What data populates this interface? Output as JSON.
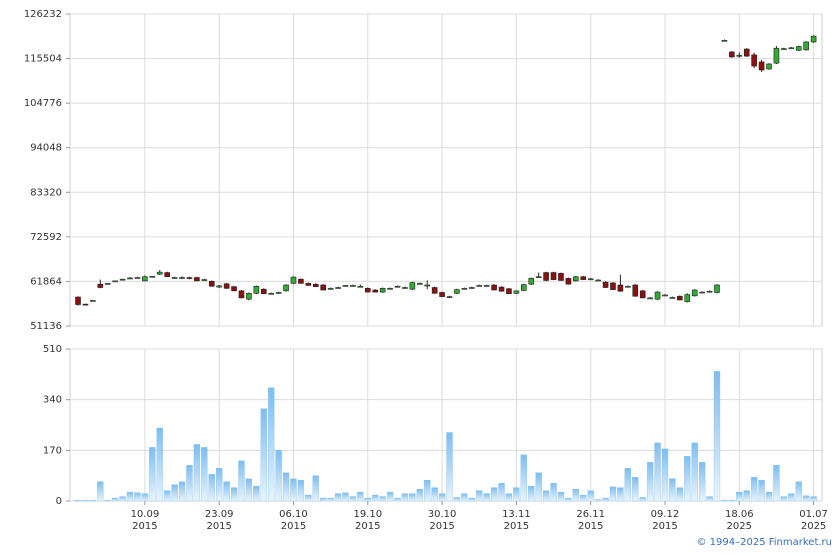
{
  "chart_data": {
    "type": "candlestick",
    "credit": "© 1994–2025 Finmarket.ru",
    "categories": [
      null,
      null,
      null,
      null,
      null,
      null,
      null,
      null,
      null,
      {
        "day": "10.09",
        "year": "2015"
      },
      null,
      null,
      null,
      null,
      null,
      null,
      null,
      null,
      null,
      {
        "day": "23.09",
        "year": "2015"
      },
      null,
      null,
      null,
      null,
      null,
      null,
      null,
      null,
      null,
      {
        "day": "06.10",
        "year": "2015"
      },
      null,
      null,
      null,
      null,
      null,
      null,
      null,
      null,
      null,
      {
        "day": "19.10",
        "year": "2015"
      },
      null,
      null,
      null,
      null,
      null,
      null,
      null,
      null,
      null,
      {
        "day": "30.10",
        "year": "2015"
      },
      null,
      null,
      null,
      null,
      null,
      null,
      null,
      null,
      null,
      {
        "day": "13.11",
        "year": "2015"
      },
      null,
      null,
      null,
      null,
      null,
      null,
      null,
      null,
      null,
      {
        "day": "26.11",
        "year": "2015"
      },
      null,
      null,
      null,
      null,
      null,
      null,
      null,
      null,
      null,
      {
        "day": "09.12",
        "year": "2015"
      },
      null,
      null,
      null,
      null,
      null,
      null,
      null,
      null,
      null,
      {
        "day": "18.06",
        "year": "2025"
      },
      null,
      null,
      null,
      null,
      null,
      null,
      null,
      null,
      null,
      {
        "day": "01.07",
        "year": "2025"
      }
    ],
    "ohlc": [
      [
        58100,
        58300,
        56000,
        56300
      ],
      [
        56400,
        56500,
        56200,
        56300
      ],
      [
        57300,
        57400,
        57200,
        57300
      ],
      [
        61200,
        62300,
        60200,
        60400
      ],
      [
        61400,
        61500,
        61300,
        61400
      ],
      [
        61900,
        62000,
        61800,
        62000
      ],
      [
        62400,
        62500,
        62300,
        62400
      ],
      [
        62700,
        62900,
        62600,
        62700
      ],
      [
        62800,
        63000,
        62600,
        62800
      ],
      [
        62000,
        63300,
        61900,
        63000
      ],
      [
        63000,
        63200,
        62800,
        63100
      ],
      [
        63600,
        64600,
        63400,
        64100
      ],
      [
        64000,
        64200,
        62900,
        63000
      ],
      [
        62800,
        63000,
        62600,
        62800
      ],
      [
        62700,
        63100,
        62500,
        62800
      ],
      [
        62800,
        63000,
        62400,
        62600
      ],
      [
        62800,
        63000,
        61900,
        62000
      ],
      [
        62300,
        62500,
        62100,
        62300
      ],
      [
        61900,
        62100,
        60600,
        60700
      ],
      [
        60500,
        61000,
        60300,
        60800
      ],
      [
        61300,
        61500,
        60100,
        60200
      ],
      [
        60600,
        60800,
        59500,
        59600
      ],
      [
        59600,
        59800,
        57800,
        57900
      ],
      [
        57600,
        59200,
        57300,
        59000
      ],
      [
        59000,
        60900,
        58800,
        60700
      ],
      [
        60000,
        60200,
        58800,
        58900
      ],
      [
        59000,
        59200,
        58700,
        59000
      ],
      [
        59100,
        59400,
        58900,
        59200
      ],
      [
        59600,
        61200,
        59400,
        61000
      ],
      [
        61400,
        63100,
        61200,
        62900
      ],
      [
        62400,
        62600,
        61300,
        61400
      ],
      [
        61400,
        61600,
        60800,
        60900
      ],
      [
        61200,
        61400,
        60500,
        60600
      ],
      [
        61000,
        61200,
        59700,
        59800
      ],
      [
        60200,
        60400,
        60000,
        60200
      ],
      [
        60400,
        60600,
        60200,
        60400
      ],
      [
        60900,
        61000,
        60700,
        60900
      ],
      [
        60900,
        61100,
        60700,
        60900
      ],
      [
        60700,
        61100,
        60500,
        60700
      ],
      [
        60200,
        60400,
        59200,
        59300
      ],
      [
        59800,
        60000,
        59200,
        59300
      ],
      [
        59300,
        60400,
        59100,
        60200
      ],
      [
        60200,
        60400,
        60000,
        60200
      ],
      [
        60700,
        60900,
        60500,
        60700
      ],
      [
        60400,
        60600,
        60200,
        60400
      ],
      [
        60000,
        61800,
        59800,
        61600
      ],
      [
        61400,
        61600,
        61200,
        61400
      ],
      [
        61000,
        62100,
        60000,
        61000
      ],
      [
        60400,
        60600,
        58900,
        59000
      ],
      [
        59200,
        59400,
        58100,
        58200
      ],
      [
        58200,
        58400,
        57900,
        58200
      ],
      [
        59000,
        60100,
        58800,
        59900
      ],
      [
        60200,
        60400,
        60000,
        60200
      ],
      [
        60400,
        60600,
        60200,
        60400
      ],
      [
        60900,
        61100,
        60700,
        60900
      ],
      [
        60900,
        61100,
        60700,
        60900
      ],
      [
        61000,
        61200,
        59700,
        59800
      ],
      [
        60500,
        60700,
        59400,
        59500
      ],
      [
        60100,
        60300,
        58800,
        58900
      ],
      [
        59000,
        59700,
        58800,
        59600
      ],
      [
        59700,
        61300,
        59500,
        61100
      ],
      [
        61200,
        62800,
        61000,
        62600
      ],
      [
        63000,
        64000,
        62800,
        63000
      ],
      [
        64000,
        64200,
        61900,
        62100
      ],
      [
        64000,
        64200,
        62200,
        62300
      ],
      [
        63800,
        64000,
        62000,
        62100
      ],
      [
        62600,
        62800,
        61100,
        61200
      ],
      [
        62000,
        63200,
        61800,
        63000
      ],
      [
        63000,
        63200,
        62200,
        62300
      ],
      [
        62500,
        62700,
        62300,
        62500
      ],
      [
        62200,
        62400,
        62000,
        62200
      ],
      [
        61700,
        61900,
        60300,
        60400
      ],
      [
        61500,
        61700,
        59800,
        59900
      ],
      [
        61000,
        63500,
        59400,
        59500
      ],
      [
        60700,
        60900,
        60500,
        60700
      ],
      [
        61000,
        61200,
        58200,
        58300
      ],
      [
        59600,
        59800,
        57800,
        57900
      ],
      [
        57900,
        58100,
        57700,
        57900
      ],
      [
        57600,
        59500,
        57400,
        59300
      ],
      [
        58600,
        58800,
        58400,
        58600
      ],
      [
        58000,
        58200,
        57800,
        58000
      ],
      [
        58300,
        58500,
        57300,
        57400
      ],
      [
        57000,
        59000,
        56800,
        58700
      ],
      [
        58400,
        60000,
        58200,
        59800
      ],
      [
        59300,
        59500,
        59100,
        59300
      ],
      [
        59500,
        59700,
        59300,
        59500
      ],
      [
        59200,
        61200,
        59000,
        61000
      ],
      [
        119900,
        120100,
        119800,
        119900
      ],
      [
        117100,
        117300,
        115700,
        115900
      ],
      [
        116300,
        117000,
        115700,
        116300
      ],
      [
        117800,
        118000,
        115900,
        116100
      ],
      [
        116400,
        116900,
        113200,
        113700
      ],
      [
        114700,
        115200,
        112300,
        112750
      ],
      [
        113000,
        114400,
        112800,
        114200
      ],
      [
        114400,
        118500,
        114200,
        118000
      ],
      [
        117900,
        118100,
        117700,
        117900
      ],
      [
        118100,
        118300,
        117900,
        118100
      ],
      [
        117500,
        118600,
        117300,
        118400
      ],
      [
        117600,
        119700,
        117400,
        119500
      ],
      [
        119500,
        121100,
        119300,
        120900
      ]
    ],
    "up_color": "#33aa33",
    "down_color": "#8b1010",
    "ylim": [
      51136,
      126232
    ],
    "yticks": [
      51136,
      61864,
      72592,
      83320,
      94048,
      104776,
      115504,
      126232
    ],
    "volume": [
      3,
      3,
      3,
      65,
      3,
      10,
      15,
      30,
      28,
      25,
      180,
      245,
      35,
      55,
      65,
      120,
      190,
      180,
      90,
      110,
      65,
      45,
      135,
      75,
      50,
      310,
      380,
      170,
      95,
      75,
      70,
      20,
      85,
      10,
      10,
      25,
      28,
      15,
      30,
      10,
      20,
      15,
      30,
      10,
      25,
      25,
      40,
      70,
      45,
      25,
      230,
      12,
      25,
      10,
      35,
      25,
      45,
      60,
      25,
      45,
      155,
      50,
      95,
      35,
      60,
      30,
      10,
      40,
      20,
      35,
      5,
      10,
      48,
      45,
      110,
      80,
      12,
      130,
      195,
      175,
      75,
      45,
      150,
      195,
      130,
      15,
      435,
      3,
      3,
      30,
      35,
      80,
      70,
      30,
      120,
      15,
      25,
      65,
      18,
      15
    ],
    "volume_color": "#7dbdf0",
    "y2lim": [
      0,
      510
    ],
    "y2ticks": [
      0,
      170,
      340,
      510
    ],
    "grid": true
  }
}
